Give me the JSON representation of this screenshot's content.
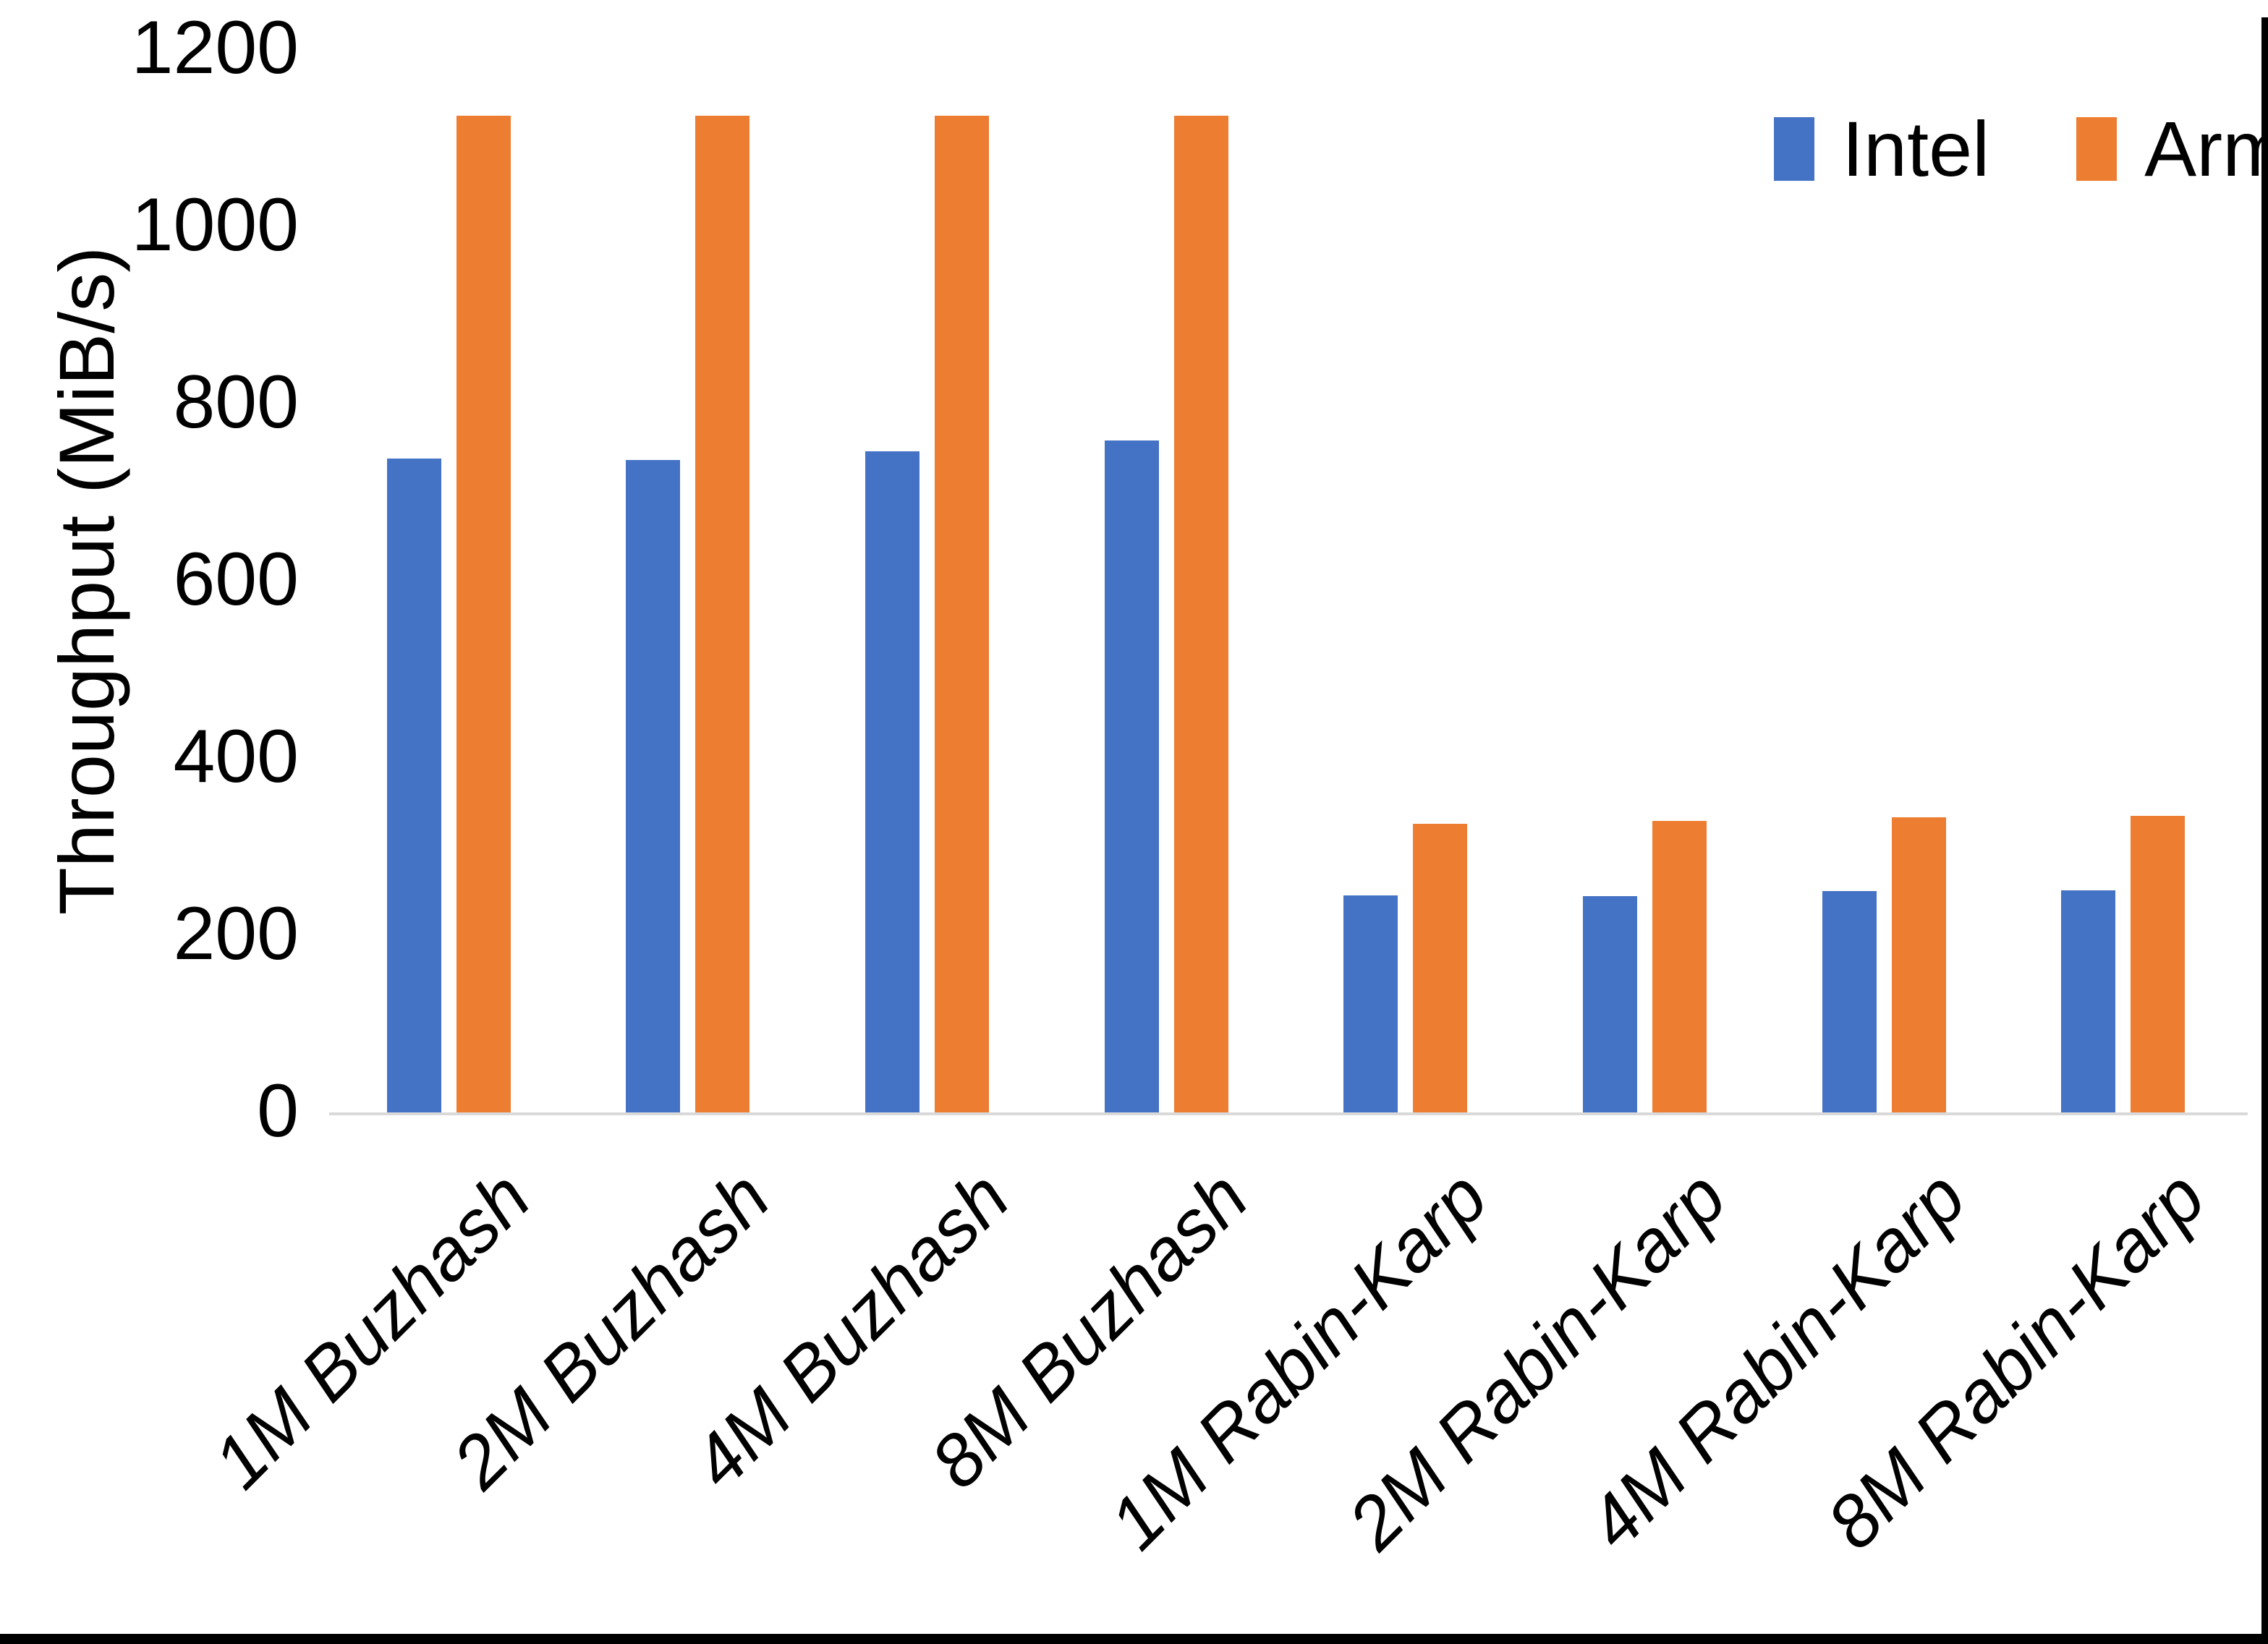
{
  "figure": {
    "background": "#ffffff",
    "frame_color": "#000000",
    "axis_line_color": "#d9d9d9"
  },
  "chart_data": {
    "type": "bar",
    "title": "",
    "categories": [
      "1M Buzhash",
      "2M Buzhash",
      "4M Buzhash",
      "8M Buzhash",
      "1M Rabin-Karp",
      "2M Rabin-Karp",
      "4M Rabin-Karp",
      "8M Rabin-Karp"
    ],
    "series": [
      {
        "name": "Intel",
        "color": "#4472C4",
        "values": [
          738,
          736,
          746,
          758,
          245,
          244,
          250,
          251
        ]
      },
      {
        "name": "Arm",
        "color": "#ED7D31",
        "values": [
          1125,
          1125,
          1125,
          1125,
          326,
          329,
          333,
          335
        ]
      }
    ],
    "xlabel": "",
    "ylabel": "Throughput (MiB/s)",
    "ylim": [
      0,
      1200
    ],
    "yticks": [
      0,
      200,
      400,
      600,
      800,
      1000,
      1200
    ],
    "grid": "off",
    "legend_position": "top-right"
  }
}
